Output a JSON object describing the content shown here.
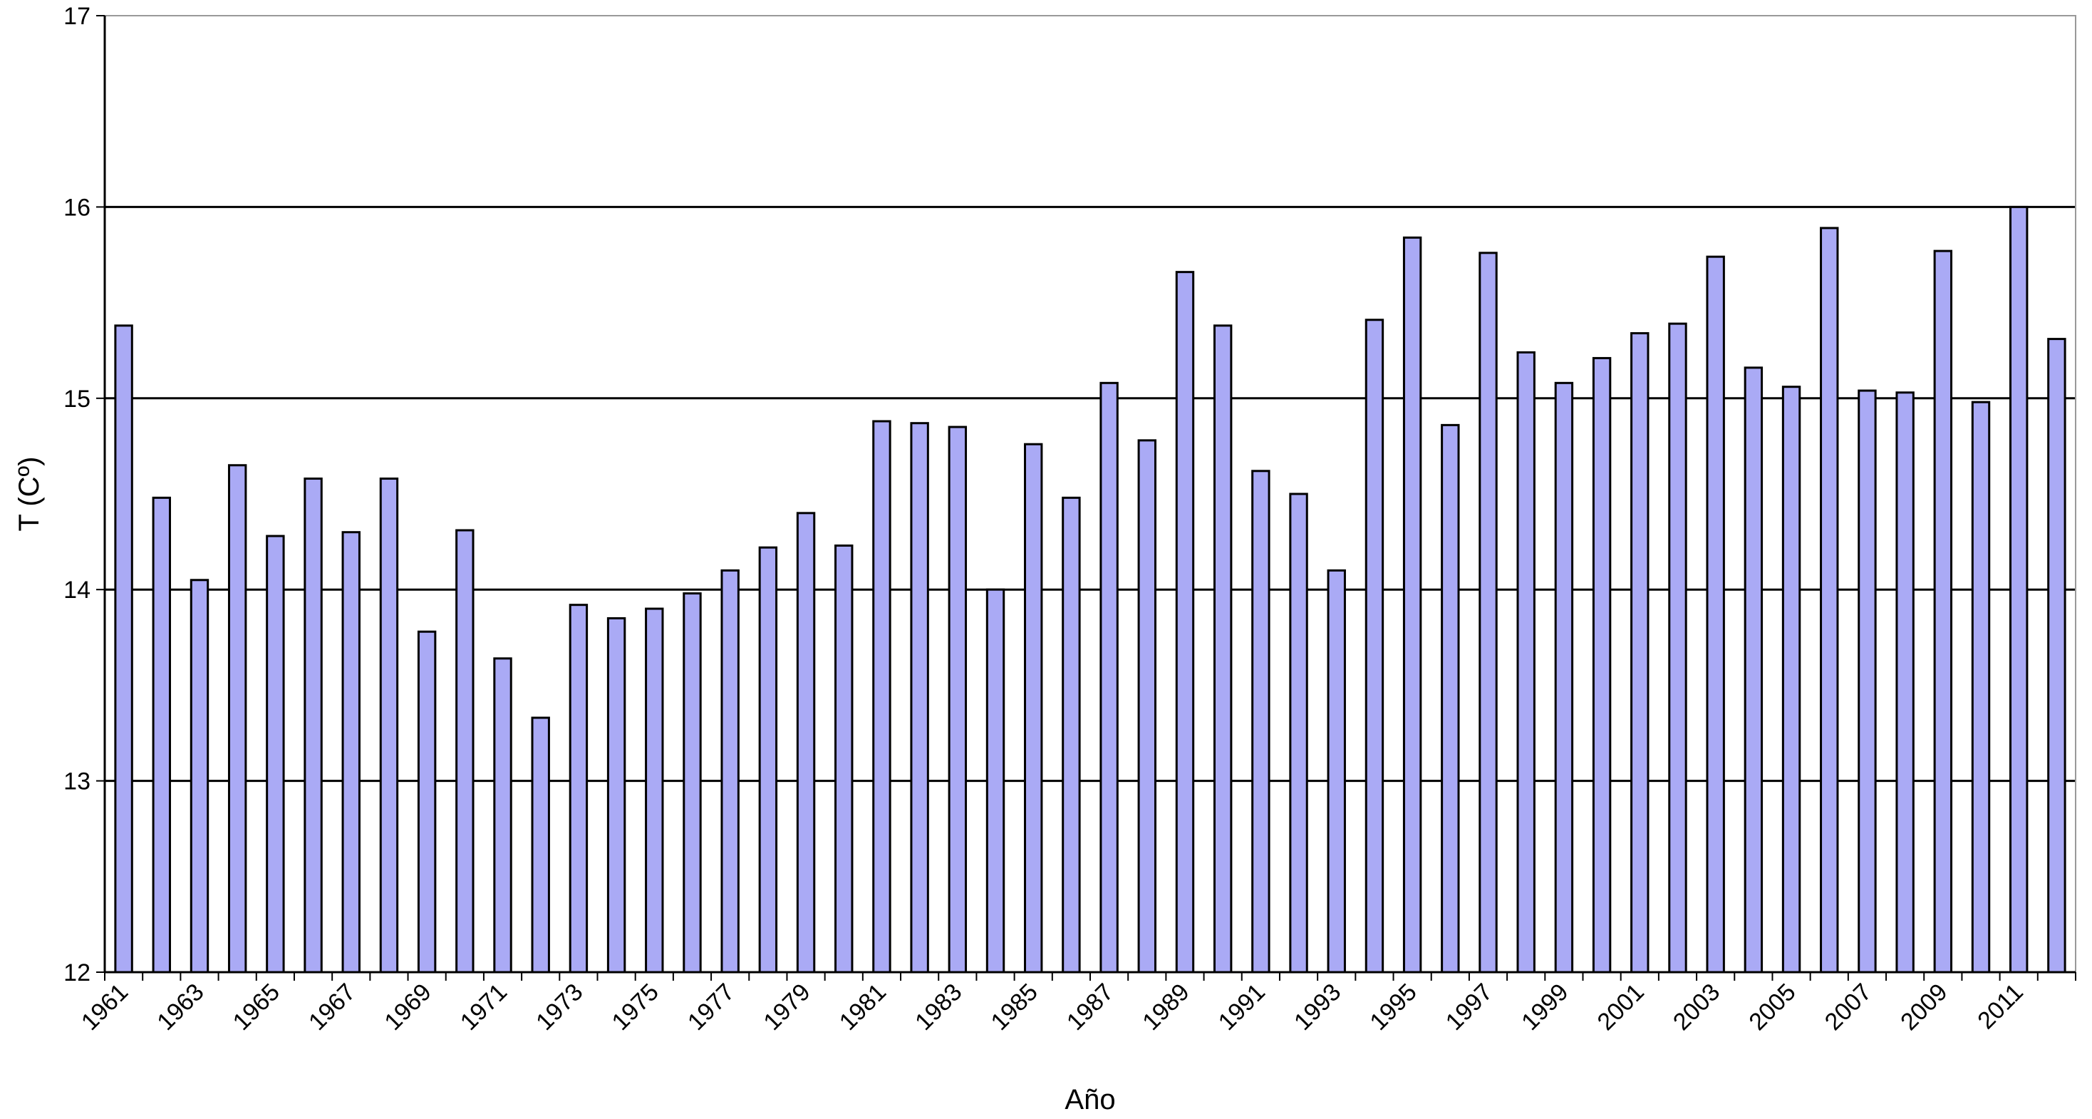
{
  "chart_data": {
    "type": "bar",
    "title": "",
    "xlabel": "Año",
    "ylabel": "T (Cº)",
    "ylim": [
      12,
      17
    ],
    "yticks": [
      "12",
      "13",
      "14",
      "15",
      "16",
      "17"
    ],
    "grid": "horizontal",
    "legend": "none",
    "bar_color": "#aaaaf5",
    "bar_edge_color": "#000000",
    "categories": [
      "1961",
      "1962",
      "1963",
      "1964",
      "1965",
      "1966",
      "1967",
      "1968",
      "1969",
      "1970",
      "1971",
      "1972",
      "1973",
      "1974",
      "1975",
      "1976",
      "1977",
      "1978",
      "1979",
      "1980",
      "1981",
      "1982",
      "1983",
      "1984",
      "1985",
      "1986",
      "1987",
      "1988",
      "1989",
      "1990",
      "1991",
      "1992",
      "1993",
      "1994",
      "1995",
      "1996",
      "1997",
      "1998",
      "1999",
      "2000",
      "2001",
      "2002",
      "2003",
      "2004",
      "2005",
      "2006",
      "2007",
      "2008",
      "2009",
      "2010",
      "2011",
      "2012"
    ],
    "xtick_labels": [
      "1961",
      "1963",
      "1965",
      "1967",
      "1969",
      "1971",
      "1973",
      "1975",
      "1977",
      "1979",
      "1981",
      "1983",
      "1985",
      "1987",
      "1989",
      "1991",
      "1993",
      "1995",
      "1997",
      "1999",
      "2001",
      "2003",
      "2005",
      "2007",
      "2009",
      "2011"
    ],
    "values": [
      15.38,
      14.48,
      14.05,
      14.65,
      14.28,
      14.58,
      14.3,
      14.58,
      13.78,
      14.31,
      13.64,
      13.33,
      13.92,
      13.85,
      13.9,
      13.98,
      14.1,
      14.22,
      14.4,
      14.23,
      14.88,
      14.87,
      14.85,
      14.0,
      14.76,
      14.48,
      15.08,
      14.78,
      15.66,
      15.38,
      14.62,
      14.5,
      14.1,
      15.41,
      15.84,
      14.86,
      15.76,
      15.24,
      15.08,
      15.21,
      15.34,
      15.39,
      15.74,
      15.16,
      15.06,
      15.89,
      15.04,
      15.03,
      15.77,
      14.98,
      16.0,
      15.31
    ]
  }
}
